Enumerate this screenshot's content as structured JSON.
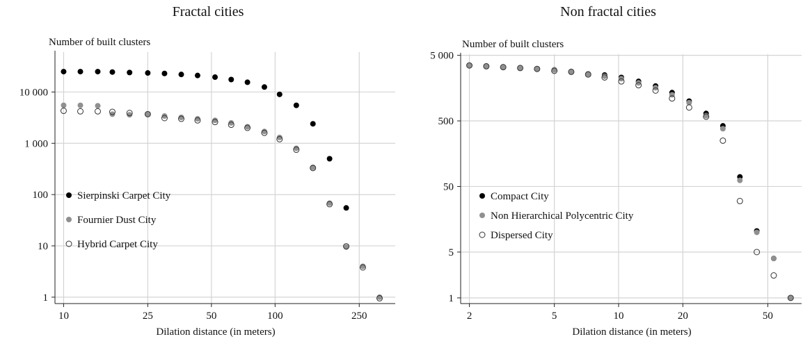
{
  "chart_data": [
    {
      "type": "scatter",
      "title": "Fractal cities",
      "xlabel": "Dilation distance (in meters)",
      "ylabel": "Number of built clusters",
      "x_scale": "log",
      "y_scale": "log",
      "xlim": [
        9.1,
        370
      ],
      "ylim": [
        0.75,
        60000
      ],
      "x_ticks": [
        10,
        25,
        50,
        100,
        250
      ],
      "x_tick_labels": [
        "10",
        "25",
        "50",
        "100",
        "250"
      ],
      "y_ticks": [
        1,
        10,
        100,
        1000,
        10000
      ],
      "y_tick_labels": [
        "1",
        "10",
        "100",
        "1 000",
        "10 000"
      ],
      "grid": true,
      "legend_position": "bottom-left",
      "series": [
        {
          "name": "Sierpinski Carpet City",
          "color": "#000000",
          "marker": "filled",
          "x": [
            10,
            12,
            14.5,
            17,
            20.5,
            25,
            30,
            36,
            43,
            52,
            62,
            74,
            89,
            105,
            126,
            151,
            181,
            217
          ],
          "y": [
            25000,
            25000,
            25000,
            24500,
            24000,
            23500,
            23000,
            22000,
            21000,
            19500,
            17500,
            15500,
            12500,
            9000,
            5500,
            2400,
            500,
            55
          ]
        },
        {
          "name": "Fournier Dust City",
          "color": "#909090",
          "marker": "filled",
          "x": [
            10,
            12,
            14.5,
            17,
            20.5,
            25,
            30,
            36,
            43,
            52,
            62,
            74,
            89,
            105,
            126,
            151,
            181,
            217,
            260,
            312
          ],
          "y": [
            5500,
            5500,
            5400,
            3700,
            3600,
            3700,
            3400,
            3200,
            3000,
            2800,
            2500,
            2100,
            1700,
            1300,
            800,
            340,
            68,
            9.5,
            4,
            1
          ]
        },
        {
          "name": "Hybrid Carpet City",
          "color": "#555555",
          "marker": "hollow",
          "x": [
            10,
            12,
            14.5,
            17,
            20.5,
            25,
            30,
            36,
            43,
            52,
            62,
            74,
            89,
            105,
            126,
            151,
            181,
            217,
            260,
            312
          ],
          "y": [
            4300,
            4200,
            4200,
            4100,
            3900,
            3700,
            3100,
            3000,
            2800,
            2600,
            2300,
            2000,
            1600,
            1200,
            750,
            330,
            65,
            9.8,
            3.8,
            0.95
          ]
        }
      ]
    },
    {
      "type": "scatter",
      "title": "Non fractal cities",
      "xlabel": "Dilation distance (in meters)",
      "ylabel": "Number of built clusters",
      "x_scale": "log",
      "y_scale": "log",
      "xlim": [
        1.82,
        72
      ],
      "ylim": [
        0.82,
        5200
      ],
      "x_ticks": [
        2,
        5,
        10,
        20,
        50
      ],
      "x_tick_labels": [
        "2",
        "5",
        "10",
        "20",
        "50"
      ],
      "y_ticks": [
        1,
        5,
        50,
        500,
        5000
      ],
      "y_tick_labels": [
        "1",
        "5",
        "50",
        "500",
        "5 000"
      ],
      "grid": true,
      "legend_position": "bottom-left",
      "series": [
        {
          "name": "Compact City",
          "color": "#000000",
          "marker": "filled",
          "x": [
            2,
            2.4,
            2.88,
            3.46,
            4.15,
            5,
            6,
            7.2,
            8.6,
            10.3,
            12.4,
            14.9,
            17.8,
            21.4,
            25.7,
            30.8,
            37,
            44.4,
            53.3,
            64
          ],
          "y": [
            3500,
            3400,
            3300,
            3200,
            3100,
            3000,
            2800,
            2600,
            2500,
            2300,
            2000,
            1700,
            1350,
            1000,
            650,
            420,
            70,
            10.5,
            4,
            1
          ]
        },
        {
          "name": "Non Hierarchical Polycentric City",
          "color": "#909090",
          "marker": "filled",
          "x": [
            2,
            2.4,
            2.88,
            3.46,
            4.15,
            5,
            6,
            7.2,
            8.6,
            10.3,
            12.4,
            14.9,
            17.8,
            21.4,
            25.7,
            30.8,
            37,
            44.4,
            53.3,
            64
          ],
          "y": [
            3500,
            3400,
            3300,
            3200,
            3100,
            3000,
            2800,
            2600,
            2400,
            2200,
            1900,
            1600,
            1250,
            950,
            600,
            380,
            62,
            10,
            4,
            1
          ]
        },
        {
          "name": "Dispersed City",
          "color": "#555555",
          "marker": "hollow",
          "x": [
            2,
            2.4,
            2.88,
            3.46,
            4.15,
            5,
            6,
            7.2,
            8.6,
            10.3,
            12.4,
            14.9,
            17.8,
            21.4,
            25.7,
            30.8,
            37,
            44.4,
            53.3,
            64
          ],
          "y": [
            3500,
            3400,
            3300,
            3200,
            3100,
            2900,
            2800,
            2550,
            2300,
            2000,
            1750,
            1450,
            1100,
            800,
            580,
            250,
            30,
            5,
            2.2,
            1
          ]
        }
      ]
    }
  ]
}
